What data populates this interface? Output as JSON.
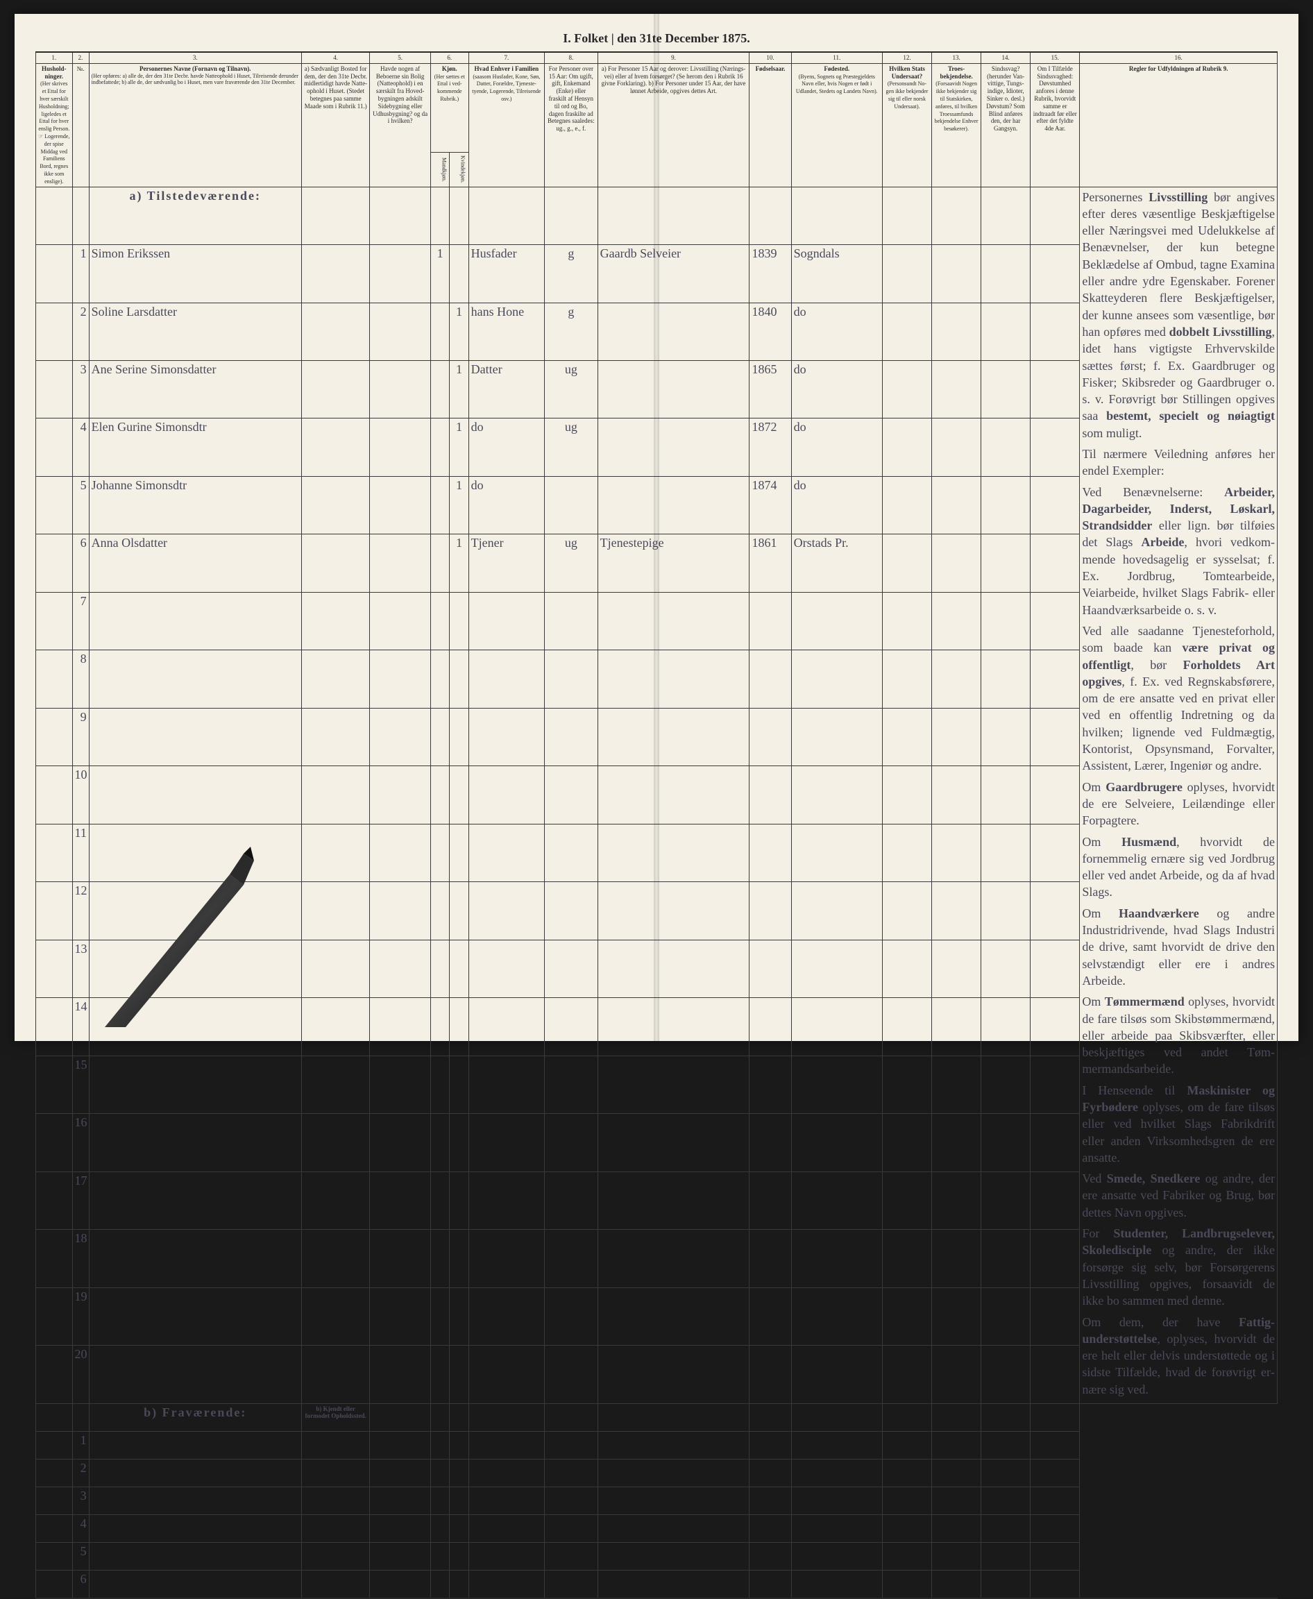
{
  "title": "I. Folket | den 31te December 1875.",
  "columns": {
    "nums": [
      "1.",
      "2.",
      "3.",
      "4.",
      "5.",
      "6.",
      "7.",
      "8.",
      "9.",
      "10.",
      "11.",
      "12.",
      "13.",
      "14.",
      "15.",
      "16."
    ],
    "h1": "Hus­hold­ninger.",
    "h1_sub": "(Her skrives et Ettal for hver særskilt Hus­holdning; lige­ledes et Ettal for hver enslig Person.\n☞ Logerende, der spise Middag ved Familiens Bord, regnes ikke som enslige).",
    "h2": "№.",
    "h3_title": "Personernes Navne (Fornavn og Tilnavn).",
    "h3_sub": "(Her opføres:\na) alle de, der den 31te Decbr. havde Natteophold i Huset, Til­reisende derunder indbefattede;\nb) alle de, der sædvanlig bo i Huset, men vare fraværende den 31te December.",
    "h4": "a) Sædvanligt Bosted for dem, der den 31te Decbr. midlertidigt havde Natte­ophold i Huset. (Stedet betegnes paa samme Maade som i Rubrik 11.)",
    "h5": "Havde nogen af Beboerne sin Bolig (Natteophold) i en særskilt fra Hoved­bygningen adskilt Side­bygning eller Udhus­bygning? og da i hvilken?",
    "h6": "Kjøn.",
    "h6_sub": "(Her sæt­tes et Ettal i ved­kom­mende Rubrik.)",
    "h6a": "Mandkjøn.",
    "h6b": "Kvindekjøn.",
    "h7": "Hvad Enhver i Familien",
    "h7_sub": "(saasom Husfader, Kone, Søn, Datter, Forældre, Tjeneste­tyende, Logerende, Tilreisende osv.)",
    "h8": "For Personer over 15 Aar: Om ugift, gift, Enkemand (Enke) eller fraskilt af Hensyn til ord og Bo, dagen fraskilte ad Betegnes saa­ledes: ug., g., e., f.",
    "h9": "a) For Personer 15 Aar og der­over: Livsstilling (Nærings­vei) eller af hvem forsør­get? (Se herom den i Rubrik 16 givne Forklaring).\nb) For Personer under 15 Aar, der have lønnet Arbeide, op­gives dettes Art.",
    "h10": "Fødsels­aar.",
    "h11": "Fødested.",
    "h11_sub": "(Byens, Sognets og Præ­stegjeldets Navn eller, hvis Nogen er født i Udlandet, Stedets og Landets Navn).",
    "h12": "Hvilken Stats Under­saat?",
    "h12_sub": "(Personsundt No­gen ikke bekjen­der sig til eller norsk Undersaat).",
    "h13": "Troes­bekjendelse.",
    "h13_sub": "(Forsaavidt No­gen ikke bekjen­der sig til Stats­kirken, anføres, til hvilken Troes­samfunds bekjendelse En­hver besøkerer).",
    "h14": "Sindssvag? (herunder Van­vittige, Tungs­indige, Idioter, Sinker o. desl.) Døvstum? Som Blind an­føres den, der har Gangsyn.",
    "h15": "Om I Tilfælde Sinds­svag­hed: Døvstum­hed anfo­res i denne Rubrik, hvorvidt samme er indtraadt før eller efter det fyldte 4de Aar.",
    "h16": "Regler for Udfyldningen af Rubrik 9."
  },
  "sections": {
    "present": "a) Tilstedeværende:",
    "absent": "b) Fraværende:",
    "absent_col4": "b) Kjendt eller formodet Opholdssted."
  },
  "rows_present": [
    {
      "n": "1",
      "name": "Simon Erikssen",
      "c6a": "1",
      "c7": "Husfader",
      "c8": "g",
      "c9": "Gaardb Selveier",
      "c10": "1839",
      "c11": "Sogndals"
    },
    {
      "n": "2",
      "name": "Soline Larsdatter",
      "c6b": "1",
      "c7": "hans Hone",
      "c8": "g",
      "c9": "",
      "c10": "1840",
      "c11": "do"
    },
    {
      "n": "3",
      "name": "Ane Serine Simonsdatter",
      "c6b": "1",
      "c7": "Datter",
      "c8": "ug",
      "c9": "",
      "c10": "1865",
      "c11": "do"
    },
    {
      "n": "4",
      "name": "Elen Gurine Simonsdtr",
      "c6b": "1",
      "c7": "do",
      "c8": "ug",
      "c9": "",
      "c10": "1872",
      "c11": "do"
    },
    {
      "n": "5",
      "name": "Johanne Simonsdtr",
      "c6b": "1",
      "c7": "do",
      "c8": "",
      "c9": "",
      "c10": "1874",
      "c11": "do"
    },
    {
      "n": "6",
      "name": "Anna Olsdatter",
      "c6b": "1",
      "c7": "Tjener",
      "c8": "ug",
      "c9": "Tjenestepige",
      "c10": "1861",
      "c11": "Orstads Pr."
    }
  ],
  "empty_present": [
    "7",
    "8",
    "9",
    "10",
    "11",
    "12",
    "13",
    "14",
    "15",
    "16",
    "17",
    "18",
    "19",
    "20"
  ],
  "empty_absent": [
    "1",
    "2",
    "3",
    "4",
    "5",
    "6"
  ],
  "instructions": [
    "Personernes <b>Livsstilling</b> bør angives efter deres væ­sentlige Beskjæftigelse eller Næringsvei med Udelukkelse af Benævnelser, der kun be­tegne Beklædelse af Ombud, tagne Examina eller andre ydre Egenskaber. Forener Skatteyderen flere Beskjæf­tigelser, der kunne ansees som væsentlige, bør han opføres med <b>dobbelt Livsstilling</b>, idet hans vigtigste Erhvervskilde sættes først; f. Ex. Gaardbru­ger og Fisker; Skibsreder og Gaardbruger o. s. v. Forøv­rigt bør Stillingen opgives saa <b>bestemt, specielt og nøiagtigt</b> som muligt.",
    "Til nærmere Veiledning an­føres her endel Exempler:",
    "Ved Benævnelserne: <b>Arbei­der, Dagarbeider, Inderst, Løskarl, Strandsidder</b> eller lign. bør tilføies det Slags <b>Arbeide</b>, hvori vedkom­mende hovedsagelig er syssel­sat; f. Ex. Jordbrug, Tomte­arbeide, Veiarbeide, hvilket Slags Fabrik- eller Haand­værksarbeide o. s. v.",
    "Ved alle saadanne Tjene­steforhold, som baade kan <b>være privat og offentligt</b>, bør <b>Forholdets Art opgives</b>, f. Ex. ved Regnskabsførere, om de ere ansatte ved en privat eller ved en offentlig Indretning og da hvilken; lignende ved Fuld­mægtig, Kontorist, Opsyns­mand, Forvalter, Assistent, Lærer, Ingeniør og andre.",
    "Om <b>Gaardbrugere</b> oplyses, hvorvidt de ere Selveiere, Lei­lændinge eller Forpagtere.",
    "Om <b>Husmænd</b>, hvorvidt de fornemmelig ernære sig ved Jordbrug eller ved andet Ar­beide, og da af hvad Slags.",
    "Om <b>Haandværkere</b> og an­dre Industridrivende, hvad Slags Industri de drive, samt hvorvidt de drive den selv­stændigt eller ere i andres Arbeide.",
    "Om <b>Tømmermænd</b> oplyses, hvorvidt de fare tilsøs som Skibstømmermænd, eller ar­beide paa Skibsværfter, eller beskjæftiges ved andet Tøm­mermandsarbeide.",
    "I Henseende til <b>Maskinister og Fyrbødere</b> oplyses, om de fare tilsøs eller ved hvilket Slags Fabrikdrift eller anden Virksomhedsgren de ere an­satte.",
    "Ved <b>Smede, Snedkere</b> og andre, der ere ansatte ved Fa­briker og Brug, bør dettes Navn opgives.",
    "For <b>Studenter, Landbrugs­elever, Skoledisciple</b> og an­dre, der ikke forsørge sig selv, bør Forsørgerens Livs­stilling opgives, forsaavidt de ikke bo sammen med denne.",
    "Om dem, der have <b>Fattig­understøttelse</b>, oplyses, hvor­vidt de ere helt eller delvis understøttede og i sidste Til­fælde, hvad de forøvrigt er­nære sig ved."
  ],
  "colors": {
    "paper": "#f4f0e6",
    "ink": "#2a2a2a",
    "handwriting": "#4a4a5a",
    "border": "#3a3a3a"
  }
}
